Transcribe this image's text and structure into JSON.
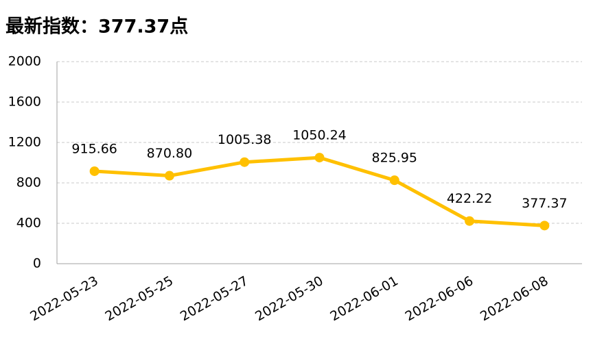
{
  "chart_data": {
    "type": "line",
    "title": "最新指数：377.37点",
    "categories": [
      "2022-05-23",
      "2022-05-25",
      "2022-05-27",
      "2022-05-30",
      "2022-06-01",
      "2022-06-06",
      "2022-06-08"
    ],
    "values": [
      915.66,
      870.8,
      1005.38,
      1050.24,
      825.95,
      422.22,
      377.37
    ],
    "value_labels": [
      "915.66",
      "870.80",
      "1005.38",
      "1050.24",
      "825.95",
      "422.22",
      "377.37"
    ],
    "color": "#FFC000",
    "ylim": [
      0,
      2000
    ],
    "yticks": [
      0,
      400,
      800,
      1200,
      1600,
      2000
    ],
    "grid": true
  }
}
